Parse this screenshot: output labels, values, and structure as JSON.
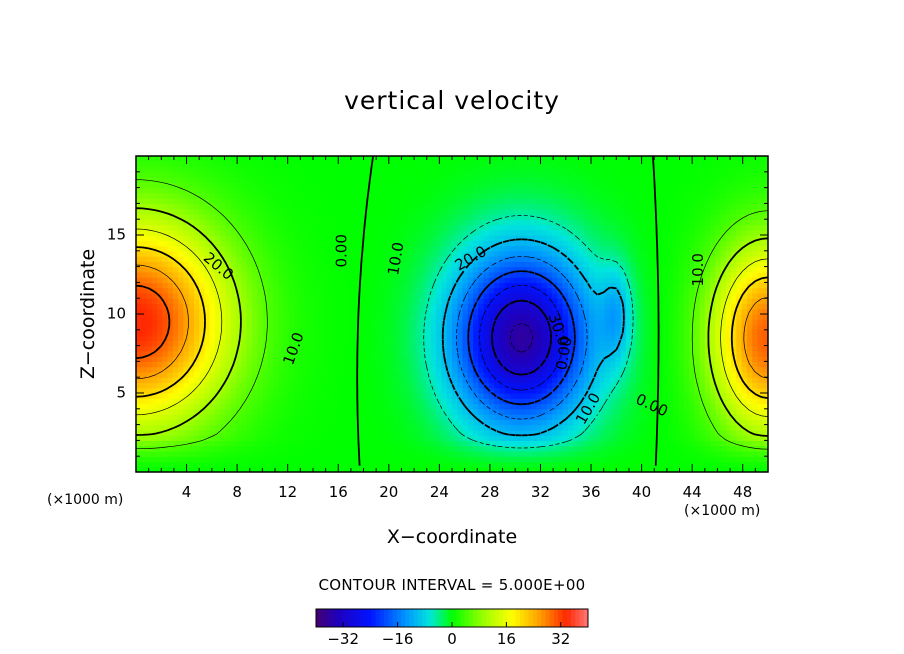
{
  "chart_data": {
    "type": "heatmap",
    "title": "vertical velocity",
    "xlabel": "X−coordinate",
    "ylabel": "Z−coordinate",
    "x_unit_label": "(×1000 m)",
    "x_unit_label_right": "(×1000 m)",
    "xlim": [
      0,
      50
    ],
    "ylim": [
      0,
      20
    ],
    "x_ticks": [
      4,
      8,
      12,
      16,
      20,
      24,
      28,
      32,
      36,
      40,
      44,
      48
    ],
    "y_ticks": [
      5,
      10,
      15
    ],
    "contour_interval_label": "CONTOUR INTERVAL = 5.000E+00",
    "contour_interval": 5,
    "colorbar": {
      "range": [
        -40,
        40
      ],
      "ticks": [
        -32,
        -16,
        0,
        16,
        32
      ]
    },
    "fields": [
      {
        "name": "updraft-left",
        "cx": 0,
        "cz": 9.5,
        "sx": 7.5,
        "sz": 6.5,
        "amp": 34
      },
      {
        "name": "downdraft-center",
        "cx": 30.5,
        "cz": 8.5,
        "sx": 5.5,
        "sz": 5.5,
        "amp": -36
      },
      {
        "name": "updraft-right",
        "cx": 50,
        "cz": 8.5,
        "sx": 4.5,
        "sz": 6,
        "amp": 30
      },
      {
        "name": "small-downdraft",
        "cx": 38,
        "cz": 10,
        "sx": 1.2,
        "sz": 3,
        "amp": -8
      }
    ],
    "contour_labels": [
      {
        "text": "20.0",
        "x": 6.5,
        "z": 13.0,
        "angle": 40
      },
      {
        "text": "10.0",
        "x": 12.5,
        "z": 7.8,
        "angle": -70
      },
      {
        "text": "0.00",
        "x": 16.3,
        "z": 14.0,
        "angle": -90
      },
      {
        "text": "10.0",
        "x": 20.6,
        "z": 13.5,
        "angle": -80
      },
      {
        "text": "20.0",
        "x": 26.5,
        "z": 13.5,
        "angle": -30
      },
      {
        "text": "30.0",
        "x": 33.4,
        "z": 9.0,
        "angle": 70
      },
      {
        "text": "0.00",
        "x": 33.9,
        "z": 7.5,
        "angle": -80
      },
      {
        "text": "10.0",
        "x": 35.8,
        "z": 4.0,
        "angle": -60
      },
      {
        "text": "0.00",
        "x": 40.8,
        "z": 4.2,
        "angle": 25
      },
      {
        "text": "10.0",
        "x": 44.5,
        "z": 12.8,
        "angle": -90
      }
    ]
  }
}
